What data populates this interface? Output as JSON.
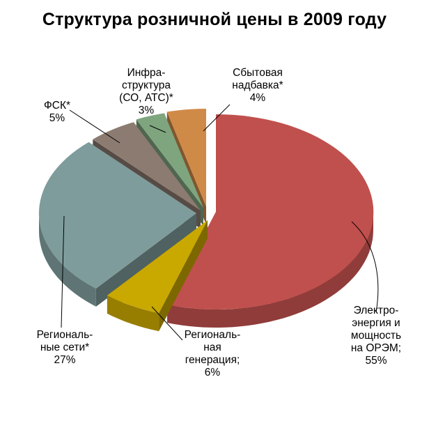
{
  "chart_data": {
    "type": "pie",
    "title": "Структура розничной цены в 2009 году",
    "slices": [
      {
        "label_lines": [
          "Электро-",
          "энергия и",
          "мощность",
          "на ОРЭМ;",
          "55%"
        ],
        "value": 55,
        "color": "#C0504D"
      },
      {
        "label_lines": [
          "Региональ-",
          "ная",
          "генерация;",
          "6%"
        ],
        "value": 6,
        "color": "#C9A800"
      },
      {
        "label_lines": [
          "Региональ-",
          "ные сети*",
          "27%"
        ],
        "value": 27,
        "color": "#7F9C9C"
      },
      {
        "label_lines": [
          "ФСК*",
          "5%"
        ],
        "value": 5,
        "color": "#8C7B70"
      },
      {
        "label_lines": [
          "Инфра-",
          "структура",
          "(СО, АТС)*",
          "3%"
        ],
        "value": 3,
        "color": "#7FA57F"
      },
      {
        "label_lines": [
          "Сбытовая",
          "надбавка*",
          "4%"
        ],
        "value": 4,
        "color": "#D08A48"
      }
    ],
    "legend": "none",
    "style": "3d-exploded"
  }
}
